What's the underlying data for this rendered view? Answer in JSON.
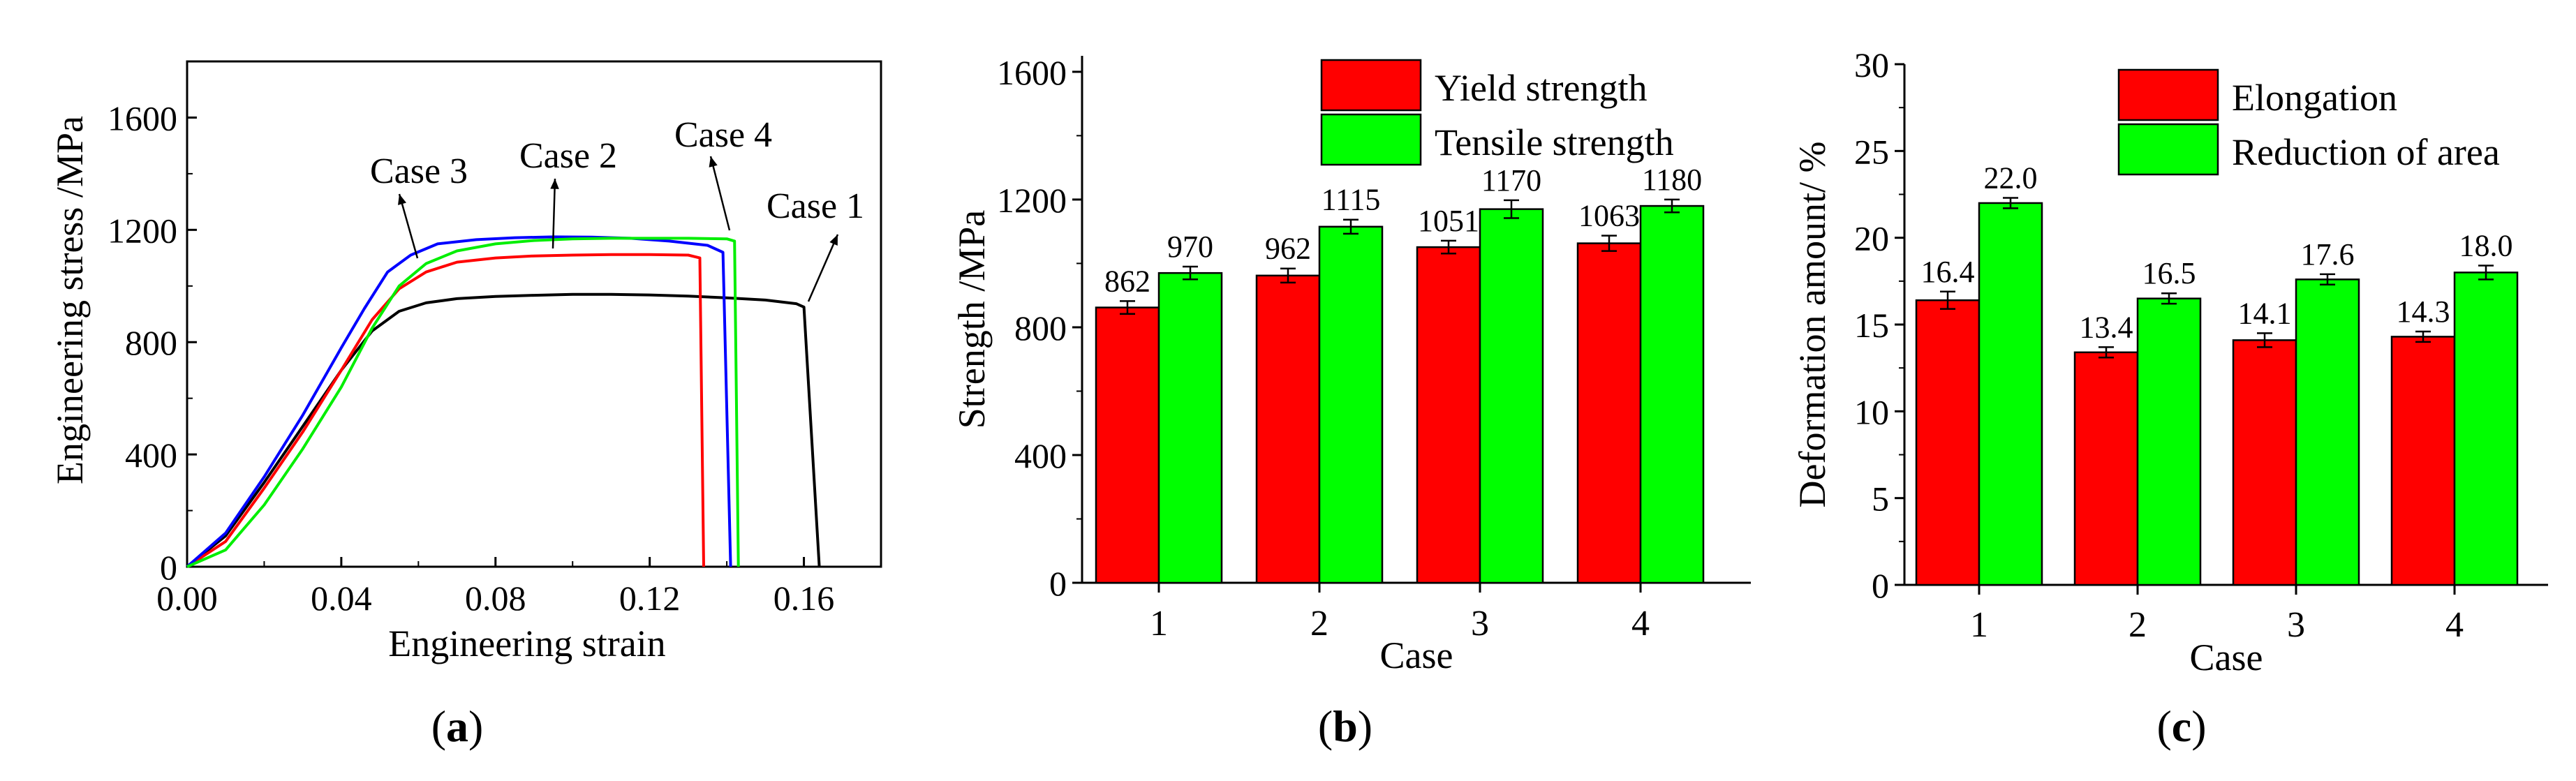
{
  "chart_data": [
    {
      "id": "a",
      "type": "line",
      "panel_label": "a",
      "xlabel": "Engineering strain",
      "ylabel": "Engineering stress /MPa",
      "xlim": [
        0,
        0.18
      ],
      "ylim": [
        0,
        1800
      ],
      "xticks": [
        "0.00",
        "0.04",
        "0.08",
        "0.12",
        "0.16"
      ],
      "yticks": [
        "0",
        "400",
        "800",
        "1200",
        "1600"
      ],
      "series": [
        {
          "name": "Case 1",
          "color": "#000000",
          "x": [
            0.0,
            0.01,
            0.02,
            0.03,
            0.04,
            0.048,
            0.055,
            0.062,
            0.07,
            0.08,
            0.09,
            0.1,
            0.11,
            0.12,
            0.13,
            0.14,
            0.15,
            0.158,
            0.16,
            0.164
          ],
          "y": [
            0,
            110,
            300,
            500,
            700,
            840,
            910,
            940,
            955,
            963,
            967,
            970,
            970,
            968,
            964,
            958,
            950,
            937,
            925,
            0
          ]
        },
        {
          "name": "Case 2",
          "color": "#ff0000",
          "x": [
            0.0,
            0.01,
            0.02,
            0.03,
            0.04,
            0.048,
            0.055,
            0.062,
            0.07,
            0.08,
            0.09,
            0.1,
            0.11,
            0.12,
            0.13,
            0.133,
            0.134
          ],
          "y": [
            0,
            90,
            280,
            480,
            700,
            880,
            990,
            1050,
            1085,
            1100,
            1107,
            1110,
            1112,
            1112,
            1110,
            1100,
            0
          ]
        },
        {
          "name": "Case 3",
          "color": "#0000ff",
          "x": [
            0.0,
            0.01,
            0.02,
            0.03,
            0.04,
            0.046,
            0.052,
            0.058,
            0.065,
            0.075,
            0.085,
            0.095,
            0.105,
            0.115,
            0.125,
            0.135,
            0.139,
            0.141
          ],
          "y": [
            0,
            120,
            320,
            540,
            780,
            920,
            1050,
            1110,
            1150,
            1165,
            1172,
            1175,
            1174,
            1170,
            1160,
            1145,
            1120,
            0
          ]
        },
        {
          "name": "Case 4",
          "color": "#00ee00",
          "x": [
            0.0,
            0.01,
            0.02,
            0.03,
            0.04,
            0.048,
            0.055,
            0.062,
            0.07,
            0.08,
            0.09,
            0.1,
            0.11,
            0.12,
            0.13,
            0.14,
            0.142,
            0.143
          ],
          "y": [
            0,
            60,
            220,
            420,
            640,
            850,
            1000,
            1080,
            1125,
            1150,
            1162,
            1168,
            1170,
            1170,
            1170,
            1168,
            1160,
            0
          ]
        }
      ],
      "annotations": [
        "Case 3",
        "Case 2",
        "Case 4",
        "Case 1"
      ]
    },
    {
      "id": "b",
      "type": "bar",
      "panel_label": "b",
      "xlabel": "Case",
      "ylabel": "Strength /MPa",
      "ylim": [
        0,
        1650
      ],
      "yticks": [
        "0",
        "400",
        "800",
        "1200",
        "1600"
      ],
      "categories": [
        "1",
        "2",
        "3",
        "4"
      ],
      "series": [
        {
          "name": "Yield strength",
          "color": "#ff0000",
          "values": [
            862,
            962,
            1051,
            1063
          ],
          "errors": [
            20,
            22,
            20,
            24
          ],
          "labels": [
            "862",
            "962",
            "1051",
            "1063"
          ]
        },
        {
          "name": "Tensile strength",
          "color": "#00ff00",
          "values": [
            970,
            1115,
            1170,
            1180
          ],
          "errors": [
            20,
            22,
            28,
            20
          ],
          "labels": [
            "970",
            "1115",
            "1170",
            "1180"
          ]
        }
      ],
      "legend": "top-right"
    },
    {
      "id": "c",
      "type": "bar",
      "panel_label": "c",
      "xlabel": "Case",
      "ylabel": "Deformation amount/ %",
      "ylim": [
        0,
        30
      ],
      "yticks": [
        "0",
        "5",
        "10",
        "15",
        "20",
        "25",
        "30"
      ],
      "categories": [
        "1",
        "2",
        "3",
        "4"
      ],
      "series": [
        {
          "name": "Elongation",
          "color": "#ff0000",
          "values": [
            16.4,
            13.4,
            14.1,
            14.3
          ],
          "errors": [
            0.5,
            0.3,
            0.4,
            0.3
          ],
          "labels": [
            "16.4",
            "13.4",
            "14.1",
            "14.3"
          ]
        },
        {
          "name": "Reduction of area",
          "color": "#00ff00",
          "values": [
            22.0,
            16.5,
            17.6,
            18.0
          ],
          "errors": [
            0.3,
            0.3,
            0.3,
            0.4
          ],
          "labels": [
            "22.0",
            "16.5",
            "17.6",
            "18.0"
          ]
        }
      ],
      "legend": "top-right"
    }
  ]
}
